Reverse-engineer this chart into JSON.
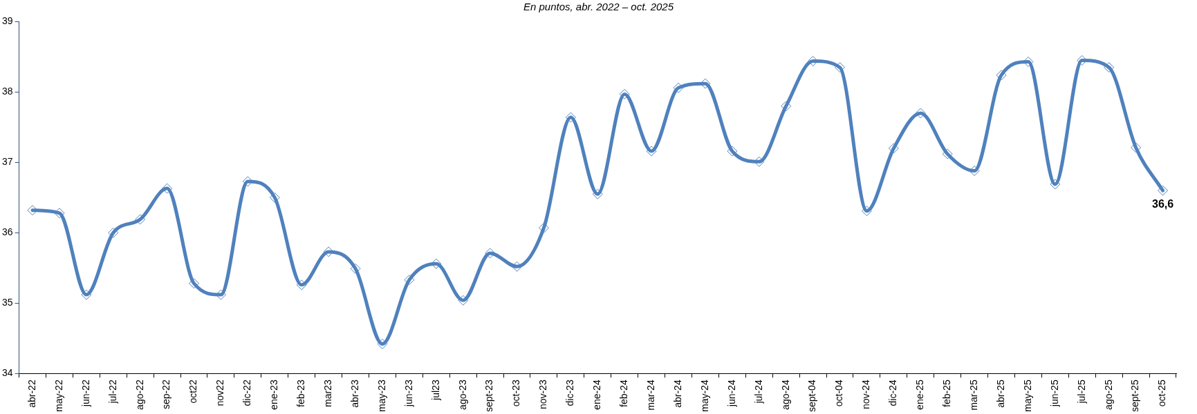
{
  "chart_data": {
    "type": "line",
    "subtitle": "En puntos, abr. 2022 – oct. 2025",
    "categories": [
      "abr-22",
      "may-22",
      "jun-22",
      "jul-22",
      "ago-22",
      "sep-22",
      "oct22",
      "nov22",
      "dic-22",
      "ene-23",
      "feb-23",
      "mar23",
      "abr-23",
      "may-23",
      "jun-23",
      "jul23",
      "ago-23",
      "sept-23",
      "oct-23",
      "nov-23",
      "dic-23",
      "ene-24",
      "feb-24",
      "mar-24",
      "abr-24",
      "may-24",
      "jun-24",
      "jul-24",
      "ago-24",
      "sept-04",
      "oct-04",
      "nov-24",
      "dic-24",
      "ene-25",
      "feb-25",
      "mar-25",
      "abr-25",
      "may-25",
      "jun-25",
      "jul-25",
      "ago-25",
      "sept-25",
      "oct-25"
    ],
    "series": [
      {
        "color": "#4f81bd",
        "values": [
          36.32,
          36.28,
          35.12,
          36.0,
          36.19,
          36.63,
          35.28,
          35.12,
          36.73,
          36.5,
          35.26,
          35.73,
          35.49,
          34.42,
          35.33,
          35.56,
          35.04,
          35.71,
          35.52,
          36.07,
          37.64,
          36.55,
          37.97,
          37.16,
          38.06,
          38.12,
          37.16,
          37.01,
          37.8,
          38.44,
          38.35,
          36.31,
          37.2,
          37.7,
          37.12,
          36.88,
          38.24,
          38.43,
          36.69,
          38.45,
          38.35,
          37.21,
          36.6
        ],
        "value_labels": [
          null,
          null,
          null,
          null,
          null,
          null,
          null,
          null,
          null,
          null,
          null,
          null,
          null,
          null,
          null,
          null,
          null,
          null,
          null,
          null,
          null,
          null,
          null,
          null,
          null,
          null,
          null,
          null,
          null,
          null,
          null,
          null,
          null,
          null,
          null,
          null,
          null,
          null,
          null,
          null,
          null,
          null,
          "36,6"
        ]
      }
    ],
    "ylim": [
      34,
      39
    ],
    "yticks": [
      34,
      35,
      36,
      37,
      38,
      39
    ],
    "grid": false,
    "legend": false,
    "marker": "diamond",
    "line_style": "solid"
  }
}
